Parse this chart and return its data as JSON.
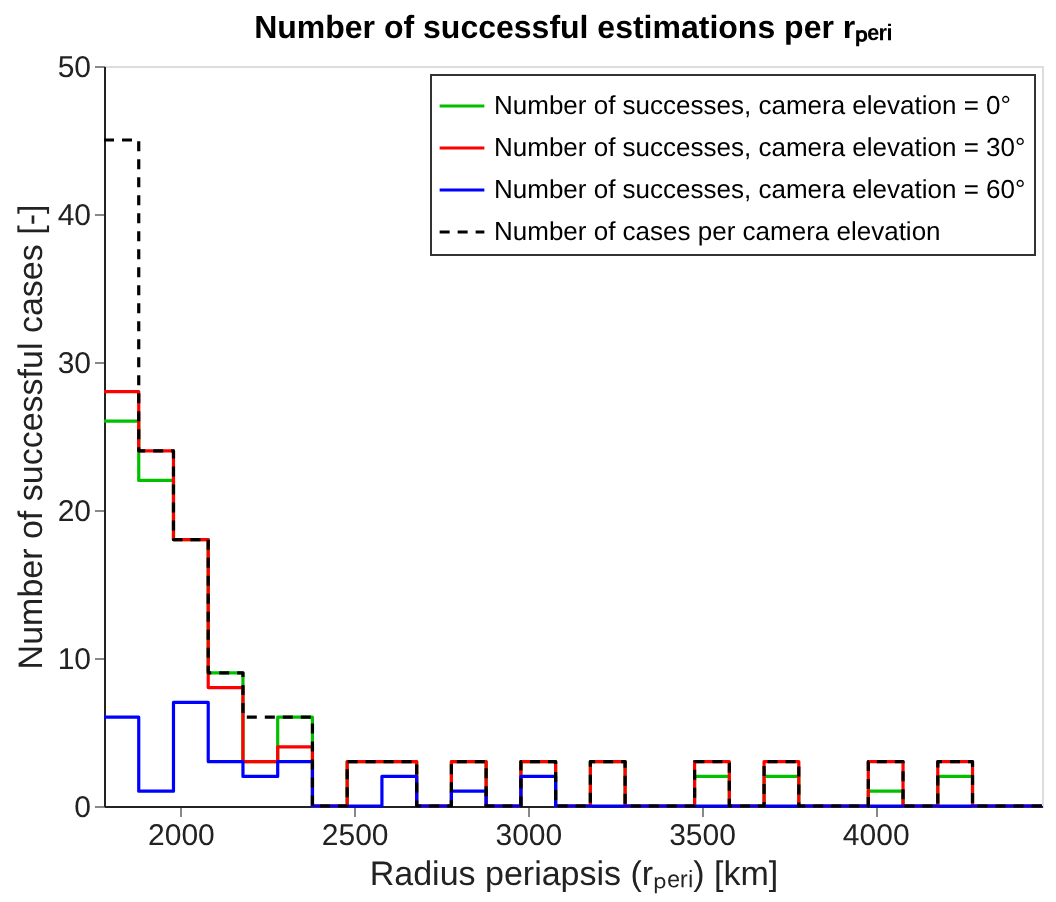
{
  "chart_data": {
    "type": "histogram",
    "title": "Number of successful estimations per rₚₑᵣᵢ",
    "xlabel": "Radius periapsis (rₚₑᵣᵢ) [km]",
    "ylabel": "Number of successful cases [-]",
    "bins": [
      1780,
      1880,
      1980,
      2080,
      2180,
      2280,
      2380,
      2480,
      2580,
      2680,
      2780,
      2880,
      2980,
      3080,
      3180,
      3280,
      3380,
      3480,
      3580,
      3680,
      3780,
      3880,
      3980,
      4080,
      4180,
      4280,
      4380,
      4480
    ],
    "series": [
      {
        "name": "Number of successes, camera elevation = 0°",
        "color": "#00c000",
        "line_style": "solid",
        "values": [
          26,
          22,
          18,
          9,
          3,
          6,
          0,
          3,
          3,
          0,
          3,
          0,
          3,
          0,
          3,
          0,
          0,
          2,
          0,
          2,
          0,
          0,
          1,
          0,
          2,
          0,
          0
        ]
      },
      {
        "name": "Number of successes, camera elevation = 30°",
        "color": "#ff0000",
        "line_style": "solid",
        "values": [
          28,
          24,
          18,
          8,
          3,
          4,
          0,
          3,
          3,
          0,
          3,
          0,
          3,
          0,
          3,
          0,
          0,
          3,
          0,
          3,
          0,
          0,
          3,
          0,
          3,
          0,
          0
        ]
      },
      {
        "name": "Number of successes, camera elevation = 60°",
        "color": "#0000ff",
        "line_style": "solid",
        "values": [
          6,
          1,
          7,
          3,
          2,
          3,
          0,
          0,
          2,
          0,
          1,
          0,
          2,
          0,
          0,
          0,
          0,
          0,
          0,
          0,
          0,
          0,
          0,
          0,
          0,
          0,
          0
        ]
      },
      {
        "name": "Number of cases per camera elevation",
        "color": "#000000",
        "line_style": "dashed",
        "values": [
          45,
          24,
          18,
          9,
          6,
          6,
          0,
          3,
          3,
          0,
          3,
          0,
          3,
          0,
          3,
          0,
          0,
          3,
          0,
          3,
          0,
          0,
          3,
          0,
          3,
          0,
          0
        ]
      }
    ],
    "xlim": [
      1780,
      4480
    ],
    "xticks": [
      2000,
      2500,
      3000,
      3500,
      4000
    ],
    "ylim": [
      0,
      50
    ],
    "yticks": [
      0,
      10,
      20,
      30,
      40,
      50
    ],
    "grid": false,
    "legend": "top right"
  }
}
